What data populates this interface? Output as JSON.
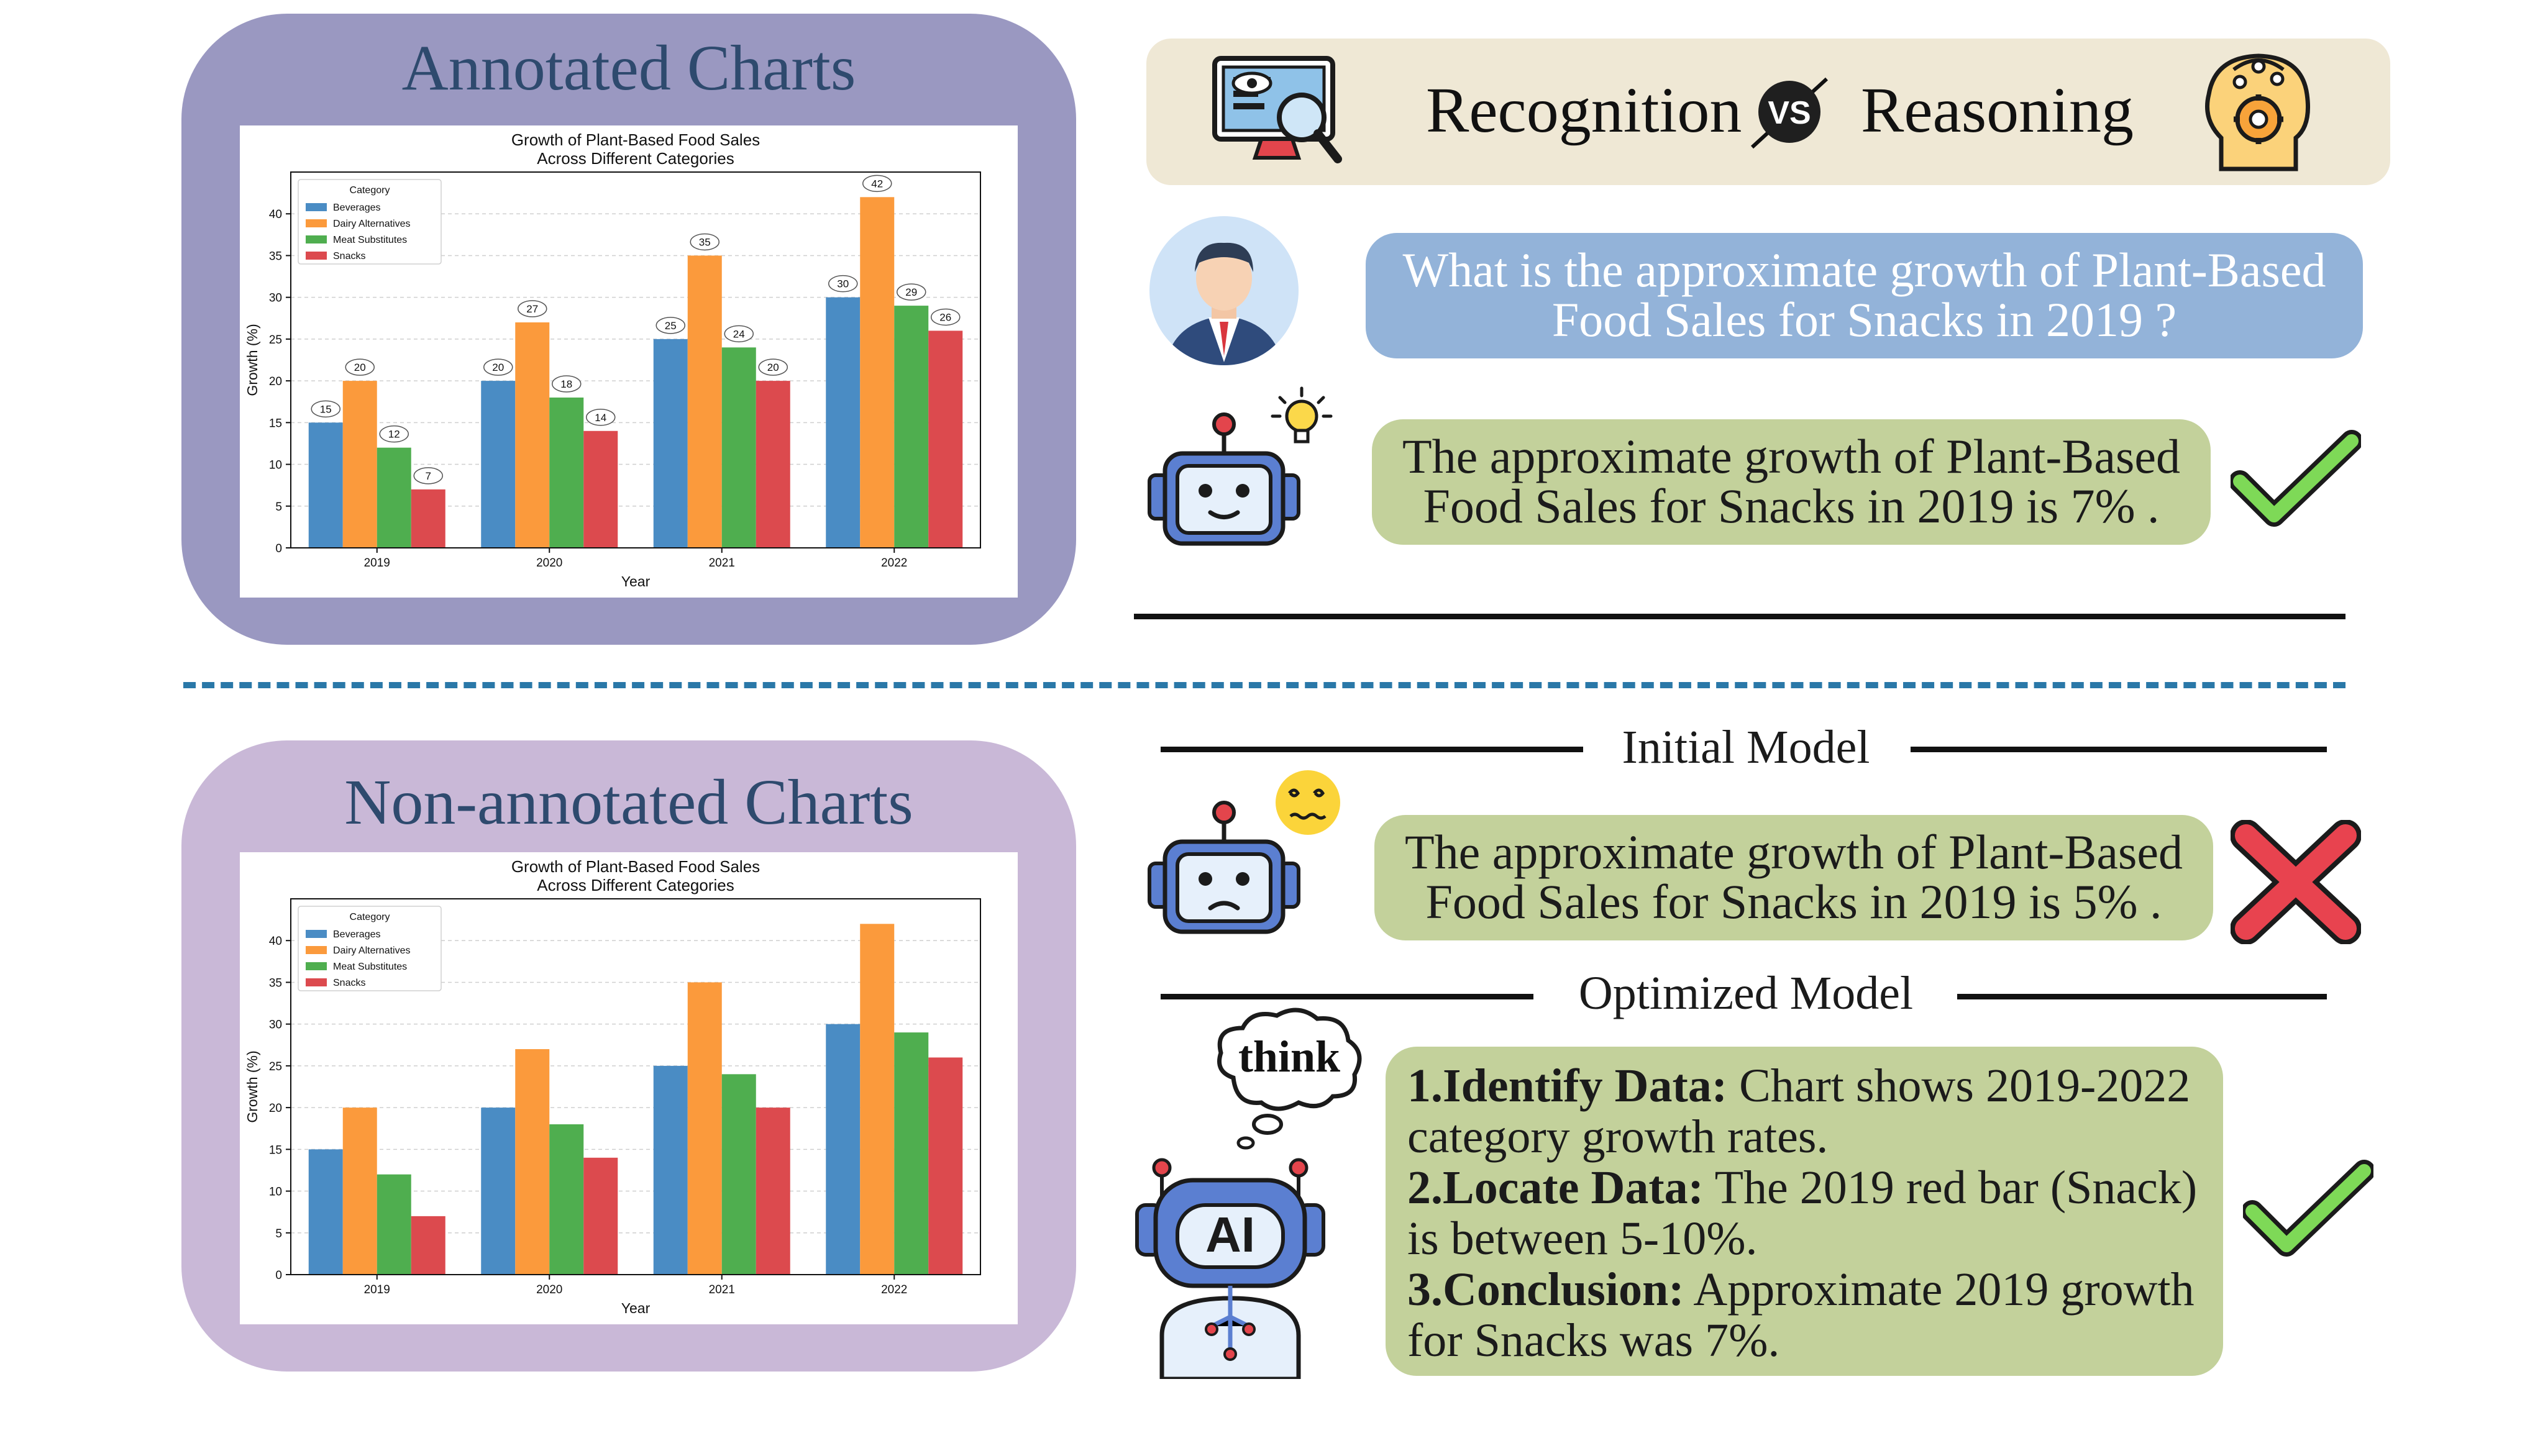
{
  "colors": {
    "top_panel": "#9a98c1",
    "bottom_panel": "#c9b8d7",
    "header_bg": "#efe8d5",
    "question_bg": "#93b3d9",
    "answer_bg": "#c3d19b",
    "divider": "#2a78a8",
    "check": "#7ed957",
    "cross": "#e8434f"
  },
  "top_panel": {
    "title": "Annotated Charts"
  },
  "bottom_panel": {
    "title": "Non-annotated Charts"
  },
  "header": {
    "left": "Recognition",
    "vs": "VS",
    "right": "Reasoning"
  },
  "question": {
    "text": "What is the approximate growth of Plant-Based Food Sales for Snacks in 2019 ?"
  },
  "answer_top": {
    "text": "The approximate growth of Plant-Based Food Sales for Snacks in 2019 is 7% ."
  },
  "initial_model": {
    "label": "Initial Model",
    "answer": "The approximate growth of Plant-Based Food Sales for Snacks in 2019 is 5% ."
  },
  "optimized_model": {
    "label": "Optimized Model",
    "think": "think",
    "ai_badge": "AI",
    "steps": [
      {
        "head": "1.Identify Data:",
        "text": " Chart shows 2019-2022 category growth rates."
      },
      {
        "head": "2.Locate Data:",
        "text": " The 2019 red bar (Snack) is between 5-10%."
      },
      {
        "head": "3.Conclusion:",
        "text": " Approximate 2019 growth for Snacks was 7%."
      }
    ]
  },
  "chart_data": [
    {
      "type": "bar",
      "title": "Growth of Plant-Based Food Sales Across Different Categories",
      "title_lines": [
        "Growth of Plant-Based Food Sales",
        "Across Different Categories"
      ],
      "xlabel": "Year",
      "ylabel": "Growth (%)",
      "ylim": [
        0,
        45
      ],
      "yticks": [
        0,
        5,
        10,
        15,
        20,
        25,
        30,
        35,
        40
      ],
      "categories": [
        "2019",
        "2020",
        "2021",
        "2022"
      ],
      "legend_title": "Category",
      "legend_position": "top-left",
      "annotated": true,
      "series": [
        {
          "name": "Beverages",
          "color": "#4a8cc4",
          "values": [
            15,
            20,
            25,
            30
          ]
        },
        {
          "name": "Dairy Alternatives",
          "color": "#fb9a3c",
          "values": [
            20,
            27,
            35,
            42
          ]
        },
        {
          "name": "Meat Substitutes",
          "color": "#4fae4f",
          "values": [
            12,
            18,
            24,
            29
          ]
        },
        {
          "name": "Snacks",
          "color": "#dc4a4e",
          "values": [
            7,
            14,
            20,
            26
          ]
        }
      ]
    },
    {
      "type": "bar",
      "title": "Growth of Plant-Based Food Sales Across Different Categories",
      "title_lines": [
        "Growth of Plant-Based Food Sales",
        "Across Different Categories"
      ],
      "xlabel": "Year",
      "ylabel": "Growth (%)",
      "ylim": [
        0,
        45
      ],
      "yticks": [
        0,
        5,
        10,
        15,
        20,
        25,
        30,
        35,
        40
      ],
      "categories": [
        "2019",
        "2020",
        "2021",
        "2022"
      ],
      "legend_title": "Category",
      "legend_position": "top-left",
      "annotated": false,
      "series": [
        {
          "name": "Beverages",
          "color": "#4a8cc4",
          "values": [
            15,
            20,
            25,
            30
          ]
        },
        {
          "name": "Dairy Alternatives",
          "color": "#fb9a3c",
          "values": [
            20,
            27,
            35,
            42
          ]
        },
        {
          "name": "Meat Substitutes",
          "color": "#4fae4f",
          "values": [
            12,
            18,
            24,
            29
          ]
        },
        {
          "name": "Snacks",
          "color": "#dc4a4e",
          "values": [
            7,
            14,
            20,
            26
          ]
        }
      ]
    }
  ]
}
